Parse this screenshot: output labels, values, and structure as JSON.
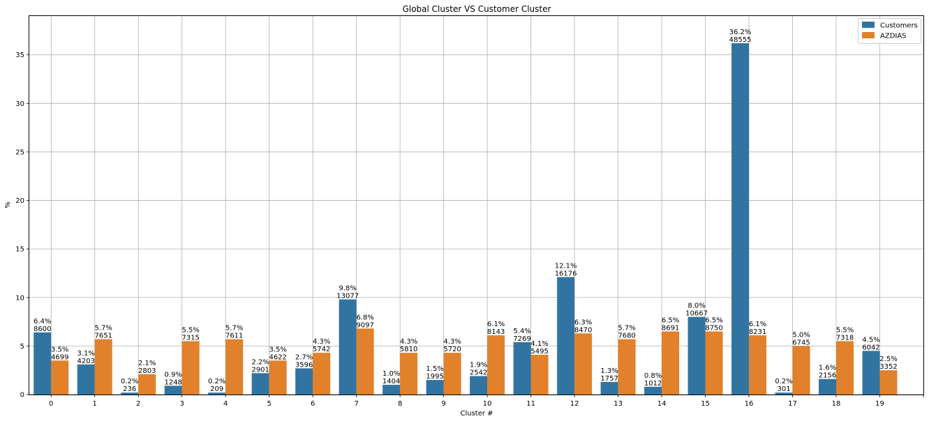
{
  "chart_data": {
    "type": "bar",
    "title": "Global Cluster VS Customer Cluster",
    "xlabel": "Cluster #",
    "ylabel": "%",
    "ylim": [
      0,
      39
    ],
    "yticks": [
      0,
      5,
      10,
      15,
      20,
      25,
      30,
      35
    ],
    "grid": true,
    "legend_position": "top-right",
    "categories": [
      "0",
      "1",
      "2",
      "3",
      "4",
      "5",
      "6",
      "7",
      "8",
      "9",
      "10",
      "11",
      "12",
      "13",
      "14",
      "15",
      "16",
      "17",
      "18",
      "19"
    ],
    "series": [
      {
        "name": "Customers",
        "color": "#3274a1",
        "values": [
          6.4,
          3.1,
          0.2,
          0.9,
          0.2,
          2.2,
          2.7,
          9.8,
          1.0,
          1.5,
          1.9,
          5.4,
          12.1,
          1.3,
          0.8,
          8.0,
          36.2,
          0.2,
          1.6,
          4.5
        ],
        "pct_labels": [
          "6.4%",
          "3.1%",
          "0.2%",
          "0.9%",
          "0.2%",
          "2.2%",
          "2.7%",
          "9.8%",
          "1.0%",
          "1.5%",
          "1.9%",
          "5.4%",
          "12.1%",
          "1.3%",
          "0.8%",
          "8.0%",
          "36.2%",
          "0.2%",
          "1.6%",
          "4.5%"
        ],
        "counts": [
          "8600",
          "4203",
          "236",
          "1248",
          "209",
          "2901",
          "3596",
          "13077",
          "1404",
          "1995",
          "2542",
          "7269",
          "16176",
          "1757",
          "1012",
          "10667",
          "48555",
          "301",
          "2156",
          "6042"
        ]
      },
      {
        "name": "AZDIAS",
        "color": "#e1812c",
        "values": [
          3.5,
          5.7,
          2.1,
          5.5,
          5.7,
          3.5,
          4.3,
          6.8,
          4.3,
          4.3,
          6.1,
          4.1,
          6.3,
          5.7,
          6.5,
          6.5,
          6.1,
          5.0,
          5.5,
          2.5
        ],
        "pct_labels": [
          "3.5%",
          "5.7%",
          "2.1%",
          "5.5%",
          "5.7%",
          "3.5%",
          "4.3%",
          "6.8%",
          "4.3%",
          "4.3%",
          "6.1%",
          "4.1%",
          "6.3%",
          "5.7%",
          "6.5%",
          "6.5%",
          "6.1%",
          "5.0%",
          "5.5%",
          "2.5%"
        ],
        "counts": [
          "4699",
          "7651",
          "2803",
          "7315",
          "7611",
          "4622",
          "5742",
          "9097",
          "5810",
          "5720",
          "8143",
          "5495",
          "8470",
          "7680",
          "8691",
          "8750",
          "8231",
          "6745",
          "7318",
          "3352"
        ]
      }
    ]
  }
}
